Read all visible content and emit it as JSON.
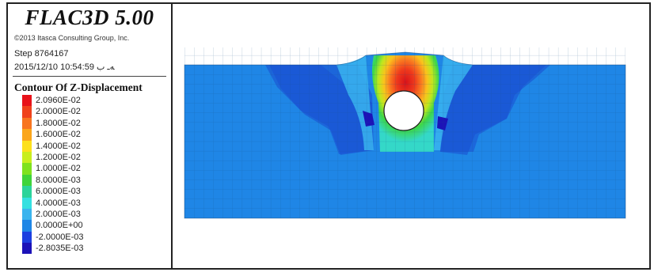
{
  "header": {
    "app_title": "FLAC3D 5.00",
    "copyright": "©2013 Itasca Consulting Group, Inc.",
    "step": "Step 8764167",
    "timestamp": "ﻪـ ب 10:54:59 2015/12/10"
  },
  "legend": {
    "title": "Contour Of Z-Displacement",
    "entries": [
      {
        "label": "2.0960E-02",
        "color": "#e8131a"
      },
      {
        "label": "2.0000E-02",
        "color": "#f0421c"
      },
      {
        "label": "1.8000E-02",
        "color": "#f87520"
      },
      {
        "label": "1.6000E-02",
        "color": "#fba61c"
      },
      {
        "label": "1.4000E-02",
        "color": "#fde01c"
      },
      {
        "label": "1.2000E-02",
        "color": "#c9ee1e"
      },
      {
        "label": "1.0000E-02",
        "color": "#7fe21e"
      },
      {
        "label": "8.0000E-03",
        "color": "#3fd43a"
      },
      {
        "label": "6.0000E-03",
        "color": "#2cd49a"
      },
      {
        "label": "4.0000E-03",
        "color": "#35e0e0"
      },
      {
        "label": "2.0000E-03",
        "color": "#3ab4ee"
      },
      {
        "label": "0.0000E+00",
        "color": "#1f86e6"
      },
      {
        "label": "-2.0000E-03",
        "color": "#1c3fe0"
      },
      {
        "label": "-2.8035E-03",
        "color": "#1c12b8"
      }
    ]
  },
  "colors": {
    "frame": "#222222",
    "mesh_line": "#1a4f86",
    "hole": "#ffffff"
  }
}
